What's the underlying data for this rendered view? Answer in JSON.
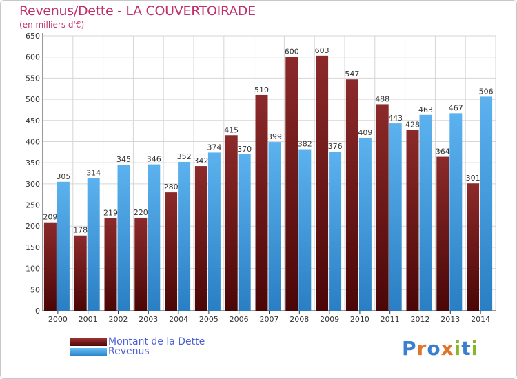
{
  "title": "Revenus/Dette - LA COUVERTOIRADE",
  "subtitle": "(en milliers d'€)",
  "colors": {
    "title": "#c0306a",
    "dette": "#7a1c1c",
    "revenus": "#4aa3e2",
    "grid": "#d6d6d6",
    "legend_text": "#4a5fd8"
  },
  "logo": {
    "text": "Proxiti",
    "letters": [
      "P",
      "r",
      "o",
      "x",
      "i",
      "t",
      "i"
    ],
    "letter_colors": [
      "#3a7fd0",
      "#e0742a",
      "#3a7fd0",
      "#e0742a",
      "#8ab52a",
      "#3a7fd0",
      "#8ab52a"
    ]
  },
  "legend": [
    {
      "label": "Montant de la Dette",
      "color": "#7a1c1c"
    },
    {
      "label": "Revenus",
      "color": "#4aa3e2"
    }
  ],
  "chart_data": {
    "type": "bar",
    "title": "Revenus/Dette - LA COUVERTOIRADE",
    "subtitle": "(en milliers d'€)",
    "xlabel": "",
    "ylabel": "",
    "ylim": [
      0,
      650
    ],
    "yticks": [
      0,
      50,
      100,
      150,
      200,
      250,
      300,
      350,
      400,
      450,
      500,
      550,
      600,
      650
    ],
    "grid": true,
    "legend_position": "bottom-left",
    "categories": [
      "2000",
      "2001",
      "2002",
      "2003",
      "2004",
      "2005",
      "2006",
      "2007",
      "2008",
      "2009",
      "2010",
      "2011",
      "2012",
      "2013",
      "2014"
    ],
    "series": [
      {
        "name": "Montant de la Dette",
        "values": [
          209,
          178,
          219,
          220,
          280,
          342,
          415,
          510,
          600,
          603,
          547,
          488,
          428,
          364,
          301
        ]
      },
      {
        "name": "Revenus",
        "values": [
          305,
          314,
          345,
          346,
          352,
          374,
          370,
          399,
          382,
          376,
          409,
          443,
          463,
          467,
          506
        ]
      }
    ]
  }
}
